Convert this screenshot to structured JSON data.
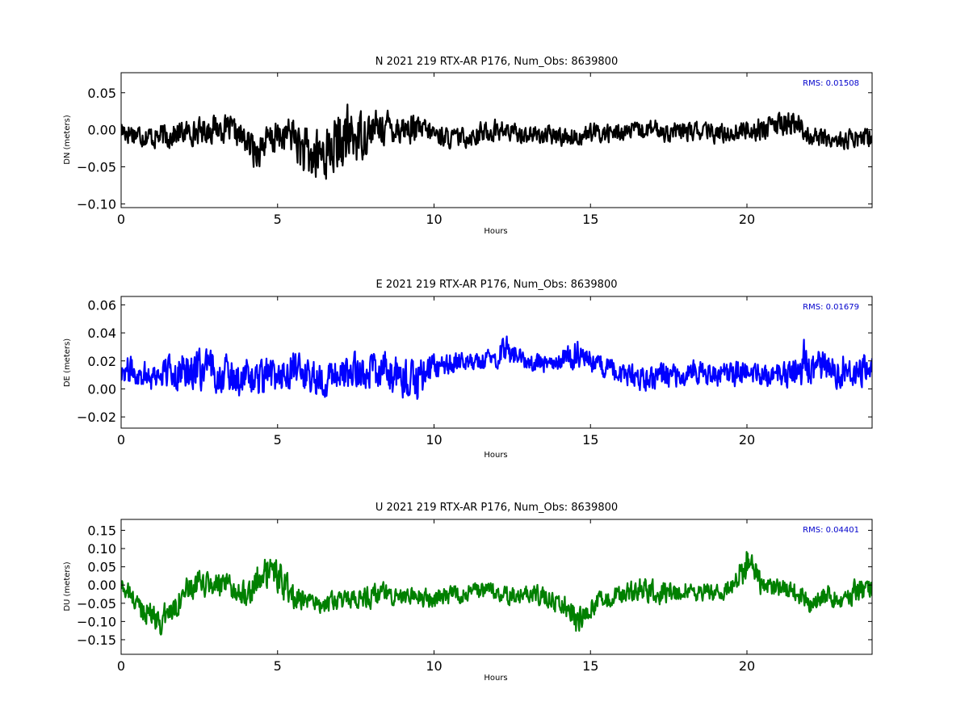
{
  "chart_data": [
    {
      "type": "line",
      "title": "N 2021 219 RTX-AR  P176, Num_Obs: 8639800",
      "xlabel": "Hours",
      "ylabel": "DN (meters)",
      "xlim": [
        0,
        24
      ],
      "ylim": [
        -0.105,
        0.077
      ],
      "xticks": [
        0,
        5,
        10,
        15,
        20
      ],
      "xtick_labels": [
        "0",
        "5",
        "10",
        "15",
        "20"
      ],
      "yticks": [
        -0.1,
        -0.05,
        0.0,
        0.05
      ],
      "ytick_labels": [
        "−0.10",
        "−0.05",
        "0.00",
        "0.05"
      ],
      "annotation": "RMS:  0.01508",
      "color": "#000000",
      "annotation_color": "#0000cc",
      "series": [
        {
          "x": [
            0,
            0.5,
            1,
            1.5,
            2,
            2.5,
            3,
            3.5,
            4,
            4.3,
            4.5,
            5,
            5.5,
            5.8,
            6,
            6.5,
            7,
            7.3,
            7.5,
            8,
            8.5,
            9,
            9.5,
            10,
            10.5,
            11,
            11.5,
            12,
            12.5,
            13,
            13.5,
            14,
            14.5,
            15,
            15.5,
            16,
            16.5,
            17,
            17.5,
            18,
            18.5,
            19,
            19.5,
            20,
            20.5,
            21,
            21.5,
            22,
            22.5,
            23,
            23.5,
            24
          ],
          "center": [
            0.0,
            -0.005,
            -0.01,
            -0.008,
            -0.004,
            -0.002,
            0.003,
            0.0,
            -0.015,
            -0.03,
            -0.02,
            -0.01,
            -0.005,
            -0.03,
            -0.04,
            -0.03,
            -0.02,
            -0.01,
            -0.01,
            0.0,
            0.005,
            0.002,
            0.0,
            -0.005,
            -0.012,
            -0.01,
            -0.005,
            0.0,
            -0.004,
            -0.006,
            -0.008,
            -0.008,
            -0.01,
            -0.005,
            -0.005,
            -0.003,
            -0.002,
            0.0,
            -0.003,
            -0.003,
            -0.002,
            -0.005,
            -0.004,
            0.0,
            0.002,
            0.006,
            0.01,
            -0.008,
            -0.012,
            -0.015,
            -0.012,
            -0.01
          ],
          "spread": [
            0.02,
            0.018,
            0.018,
            0.02,
            0.018,
            0.02,
            0.022,
            0.02,
            0.022,
            0.028,
            0.025,
            0.025,
            0.028,
            0.04,
            0.045,
            0.045,
            0.045,
            0.05,
            0.04,
            0.03,
            0.025,
            0.025,
            0.02,
            0.018,
            0.015,
            0.015,
            0.018,
            0.018,
            0.015,
            0.015,
            0.015,
            0.015,
            0.015,
            0.015,
            0.015,
            0.015,
            0.015,
            0.015,
            0.015,
            0.015,
            0.015,
            0.015,
            0.015,
            0.017,
            0.018,
            0.018,
            0.02,
            0.015,
            0.015,
            0.016,
            0.016,
            0.018
          ]
        }
      ]
    },
    {
      "type": "line",
      "title": "E 2021 219 RTX-AR  P176, Num_Obs: 8639800",
      "xlabel": "Hours",
      "ylabel": "DE (meters)",
      "xlim": [
        0,
        24
      ],
      "ylim": [
        -0.028,
        0.066
      ],
      "xticks": [
        0,
        5,
        10,
        15,
        20
      ],
      "xtick_labels": [
        "0",
        "5",
        "10",
        "15",
        "20"
      ],
      "yticks": [
        -0.02,
        0.0,
        0.02,
        0.04,
        0.06
      ],
      "ytick_labels": [
        "−0.02",
        "0.00",
        "0.02",
        "0.04",
        "0.06"
      ],
      "annotation": "RMS:  0.01679",
      "color": "#0000ff",
      "annotation_color": "#0000cc",
      "series": [
        {
          "x": [
            0,
            0.5,
            1,
            1.5,
            2,
            2.5,
            3,
            3.5,
            4,
            4.5,
            5,
            5.5,
            6,
            6.5,
            7,
            7.5,
            8,
            8.5,
            9,
            9.3,
            9.5,
            10,
            10.5,
            11,
            11.5,
            12,
            12.3,
            12.5,
            13,
            13.5,
            14,
            14.5,
            15,
            15.5,
            16,
            16.5,
            17,
            17.5,
            18,
            18.5,
            19,
            19.5,
            20,
            20.5,
            21,
            21.5,
            21.9,
            22.2,
            22.5,
            23,
            23.5,
            24
          ],
          "center": [
            0.015,
            0.012,
            0.01,
            0.012,
            0.014,
            0.013,
            0.012,
            0.01,
            0.008,
            0.006,
            0.01,
            0.012,
            0.01,
            0.008,
            0.01,
            0.012,
            0.014,
            0.012,
            0.008,
            0.004,
            0.008,
            0.015,
            0.018,
            0.02,
            0.02,
            0.022,
            0.03,
            0.025,
            0.02,
            0.018,
            0.02,
            0.025,
            0.02,
            0.015,
            0.01,
            0.008,
            0.008,
            0.01,
            0.012,
            0.012,
            0.01,
            0.01,
            0.012,
            0.01,
            0.008,
            0.014,
            0.02,
            0.016,
            0.015,
            0.014,
            0.015,
            0.015
          ],
          "spread": [
            0.012,
            0.012,
            0.013,
            0.014,
            0.016,
            0.016,
            0.016,
            0.015,
            0.016,
            0.016,
            0.015,
            0.015,
            0.016,
            0.014,
            0.014,
            0.016,
            0.016,
            0.016,
            0.016,
            0.018,
            0.016,
            0.012,
            0.01,
            0.008,
            0.008,
            0.008,
            0.014,
            0.01,
            0.008,
            0.008,
            0.008,
            0.012,
            0.01,
            0.01,
            0.01,
            0.01,
            0.012,
            0.012,
            0.01,
            0.01,
            0.01,
            0.01,
            0.01,
            0.01,
            0.01,
            0.012,
            0.02,
            0.014,
            0.014,
            0.014,
            0.014,
            0.014
          ]
        }
      ]
    },
    {
      "type": "line",
      "title": "U 2021 219 RTX-AR  P176, Num_Obs: 8639800",
      "xlabel": "Hours",
      "ylabel": "DU (meters)",
      "xlim": [
        0,
        24
      ],
      "ylim": [
        -0.19,
        0.18
      ],
      "xticks": [
        0,
        5,
        10,
        15,
        20
      ],
      "xtick_labels": [
        "0",
        "5",
        "10",
        "15",
        "20"
      ],
      "yticks": [
        -0.15,
        -0.1,
        -0.05,
        0.0,
        0.05,
        0.1,
        0.15
      ],
      "ytick_labels": [
        "−0.15",
        "−0.10",
        "−0.05",
        "0.00",
        "0.05",
        "0.10",
        "0.15"
      ],
      "annotation": "RMS:  0.04401",
      "color": "#008000",
      "annotation_color": "#0000cc",
      "series": [
        {
          "x": [
            0,
            0.3,
            0.6,
            1,
            1.3,
            1.6,
            2,
            2.5,
            3,
            3.5,
            4,
            4.5,
            4.8,
            5,
            5.5,
            6,
            6.5,
            7,
            7.5,
            8,
            8.5,
            9,
            9.5,
            10,
            10.5,
            11,
            11.5,
            12,
            12.5,
            13,
            13.5,
            14,
            14.4,
            14.55,
            15,
            15.5,
            16,
            16.5,
            17,
            17.5,
            18,
            18.5,
            19,
            19.5,
            20,
            20.5,
            21,
            21.5,
            22,
            22.5,
            23,
            23.5,
            24
          ],
          "center": [
            0.0,
            -0.03,
            -0.06,
            -0.08,
            -0.1,
            -0.07,
            -0.02,
            0.0,
            0.0,
            -0.01,
            -0.02,
            0.02,
            0.04,
            0.02,
            -0.03,
            -0.05,
            -0.05,
            -0.045,
            -0.04,
            -0.03,
            -0.02,
            -0.03,
            -0.03,
            -0.04,
            -0.03,
            -0.02,
            -0.02,
            -0.02,
            -0.03,
            -0.02,
            -0.03,
            -0.05,
            -0.06,
            -0.1,
            -0.06,
            -0.04,
            -0.03,
            -0.01,
            -0.02,
            -0.02,
            -0.01,
            -0.02,
            -0.02,
            -0.01,
            0.06,
            0.0,
            -0.01,
            -0.02,
            -0.05,
            -0.03,
            -0.04,
            -0.02,
            -0.01
          ],
          "spread": [
            0.03,
            0.035,
            0.04,
            0.04,
            0.05,
            0.045,
            0.04,
            0.04,
            0.045,
            0.04,
            0.04,
            0.06,
            0.06,
            0.06,
            0.04,
            0.03,
            0.03,
            0.03,
            0.03,
            0.035,
            0.035,
            0.03,
            0.03,
            0.03,
            0.03,
            0.03,
            0.03,
            0.03,
            0.03,
            0.03,
            0.03,
            0.035,
            0.04,
            0.05,
            0.035,
            0.03,
            0.03,
            0.04,
            0.04,
            0.035,
            0.03,
            0.03,
            0.03,
            0.03,
            0.06,
            0.04,
            0.03,
            0.03,
            0.035,
            0.035,
            0.035,
            0.04,
            0.03
          ]
        }
      ]
    }
  ]
}
